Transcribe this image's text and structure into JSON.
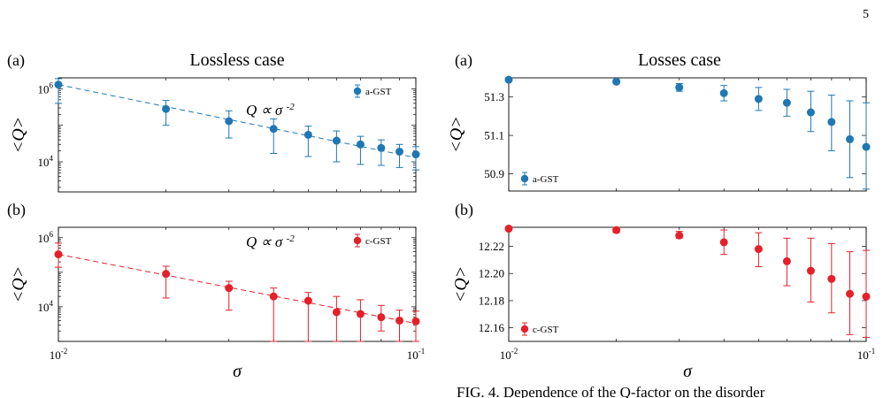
{
  "page_number": "5",
  "caption_fragment": "FIG. 4. Dependence of the Q-factor on the disorder",
  "colors": {
    "blue": "#1f77b4",
    "red": "#e4202a"
  },
  "chart_data": [
    {
      "id": "lossless-a",
      "type": "scatter",
      "panel": "(a)",
      "title": "Lossless case",
      "xlabel": "",
      "ylabel": "<Q>",
      "x_scale": "log",
      "y_scale": "log",
      "xlim": [
        0.01,
        0.1
      ],
      "ylim": [
        1500,
        2000000
      ],
      "yticks": [
        {
          "v": 10000,
          "base": "10",
          "exp": "4"
        },
        {
          "v": 1000000,
          "base": "10",
          "exp": "6"
        }
      ],
      "fit_line": {
        "style": "dashed",
        "x": [
          0.01,
          0.1
        ],
        "y": [
          1300000,
          13000
        ]
      },
      "annotation": {
        "text_pre": "Q ∝ σ",
        "exp": "-2"
      },
      "series": [
        {
          "name": "a-GST",
          "color": "#1f77b4",
          "x": [
            0.01,
            0.02,
            0.03,
            0.04,
            0.05,
            0.06,
            0.07,
            0.08,
            0.09,
            0.1
          ],
          "y": [
            1300000,
            280000,
            130000,
            80000,
            55000,
            38000,
            30000,
            24000,
            19000,
            16000
          ],
          "err_low": [
            400000,
            100000,
            45000,
            17000,
            14000,
            10000,
            8500,
            8000,
            7000,
            6000
          ],
          "err_high": [
            1900000,
            480000,
            250000,
            150000,
            95000,
            70000,
            50000,
            40000,
            30000,
            26000
          ]
        }
      ]
    },
    {
      "id": "lossless-b",
      "type": "scatter",
      "panel": "(b)",
      "title": "",
      "xlabel": "σ",
      "ylabel": "<Q>",
      "x_scale": "log",
      "y_scale": "log",
      "xlim": [
        0.01,
        0.1
      ],
      "ylim": [
        1000,
        2000000
      ],
      "yticks": [
        {
          "v": 10000,
          "base": "10",
          "exp": "4"
        },
        {
          "v": 1000000,
          "base": "10",
          "exp": "6"
        }
      ],
      "xticks": [
        {
          "v": 0.01,
          "base": "10",
          "exp": "-2"
        },
        {
          "v": 0.1,
          "base": "10",
          "exp": "-1"
        }
      ],
      "fit_line": {
        "style": "dashed",
        "x": [
          0.01,
          0.1
        ],
        "y": [
          330000,
          3300
        ]
      },
      "annotation": {
        "text_pre": "Q ∝ σ",
        "exp": "-2"
      },
      "series": [
        {
          "name": "c-GST",
          "color": "#e4202a",
          "x": [
            0.01,
            0.02,
            0.03,
            0.04,
            0.05,
            0.06,
            0.07,
            0.08,
            0.09,
            0.1
          ],
          "y": [
            330000,
            90000,
            35000,
            20000,
            15000,
            7000,
            6200,
            5000,
            4000,
            3800
          ],
          "err_low": [
            140000,
            18000,
            8000,
            1000,
            1000,
            1000,
            1000,
            2000,
            1000,
            1000
          ],
          "err_high": [
            700000,
            150000,
            55000,
            35000,
            26000,
            20000,
            16000,
            11000,
            8000,
            7500
          ]
        }
      ]
    },
    {
      "id": "losses-a",
      "type": "scatter",
      "panel": "(a)",
      "title": "Losses case",
      "xlabel": "",
      "ylabel": "<Q>",
      "x_scale": "log",
      "y_scale": "linear",
      "xlim": [
        0.01,
        0.1
      ],
      "ylim": [
        50.81,
        51.4
      ],
      "yticks": [
        {
          "v": 50.9,
          "label": "50.9"
        },
        {
          "v": 51.1,
          "label": "51.1"
        },
        {
          "v": 51.3,
          "label": "51.3"
        }
      ],
      "series": [
        {
          "name": "a-GST",
          "color": "#1f77b4",
          "x": [
            0.01,
            0.02,
            0.03,
            0.04,
            0.05,
            0.06,
            0.07,
            0.08,
            0.09,
            0.1
          ],
          "y": [
            51.39,
            51.38,
            51.35,
            51.32,
            51.29,
            51.27,
            51.22,
            51.17,
            51.08,
            51.04
          ],
          "err_low": [
            51.39,
            51.37,
            51.33,
            51.28,
            51.23,
            51.2,
            51.12,
            51.02,
            50.88,
            50.82
          ],
          "err_high": [
            51.4,
            51.39,
            51.37,
            51.36,
            51.35,
            51.34,
            51.33,
            51.31,
            51.28,
            51.27
          ]
        }
      ]
    },
    {
      "id": "losses-b",
      "type": "scatter",
      "panel": "(b)",
      "title": "",
      "xlabel": "σ",
      "ylabel": "<Q>",
      "x_scale": "log",
      "y_scale": "linear",
      "xlim": [
        0.01,
        0.1
      ],
      "ylim": [
        12.15,
        12.234
      ],
      "yticks": [
        {
          "v": 12.16,
          "label": "12.16"
        },
        {
          "v": 12.18,
          "label": "12.18"
        },
        {
          "v": 12.2,
          "label": "12.20"
        },
        {
          "v": 12.22,
          "label": "12.22"
        }
      ],
      "xticks": [
        {
          "v": 0.01,
          "base": "10",
          "exp": "-2"
        },
        {
          "v": 0.1,
          "base": "10",
          "exp": "-1"
        }
      ],
      "series": [
        {
          "name": "c-GST",
          "color": "#e4202a",
          "x": [
            0.01,
            0.02,
            0.03,
            0.04,
            0.05,
            0.06,
            0.07,
            0.08,
            0.09,
            0.1
          ],
          "y": [
            12.233,
            12.232,
            12.228,
            12.223,
            12.218,
            12.209,
            12.202,
            12.196,
            12.185,
            12.183
          ],
          "err_low": [
            12.232,
            12.23,
            12.226,
            12.214,
            12.205,
            12.191,
            12.179,
            12.171,
            12.155,
            12.153
          ],
          "err_high": [
            12.234,
            12.234,
            12.231,
            12.232,
            12.23,
            12.226,
            12.226,
            12.222,
            12.216,
            12.217
          ]
        }
      ]
    }
  ]
}
